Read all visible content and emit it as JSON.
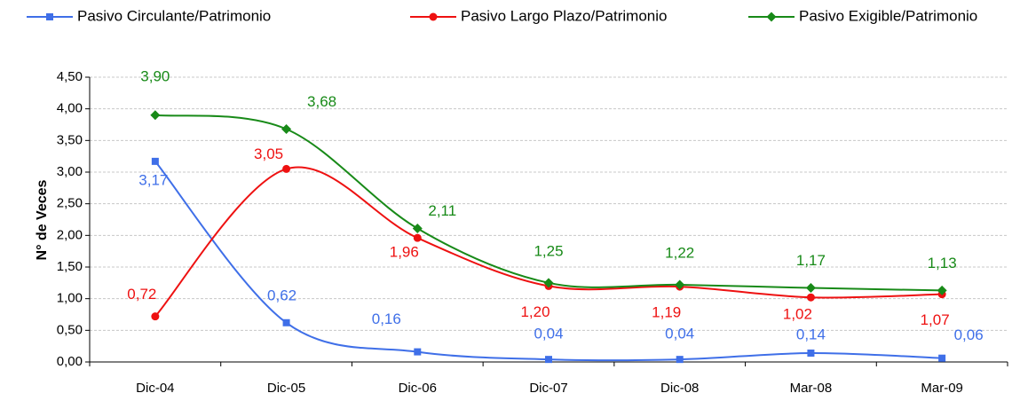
{
  "chart_data": {
    "type": "line",
    "y_label": "N° de Veces",
    "categories": [
      "Dic-04",
      "Dic-05",
      "Dic-06",
      "Dic-07",
      "Dic-08",
      "Mar-08",
      "Mar-09"
    ],
    "series": [
      {
        "name": "Pasivo Circulante/Patrimonio",
        "color": "#3f6fe8",
        "marker": "square",
        "values": [
          3.17,
          0.62,
          0.16,
          0.04,
          0.04,
          0.14,
          0.06
        ],
        "value_labels": [
          "3,17",
          "0,62",
          "0,16",
          "0,04",
          "0,04",
          "0,14",
          "0,06"
        ]
      },
      {
        "name": "Pasivo Largo Plazo/Patrimonio",
        "color": "#ee1111",
        "marker": "circle",
        "values": [
          0.72,
          3.05,
          1.96,
          1.2,
          1.19,
          1.02,
          1.07
        ],
        "value_labels": [
          "0,72",
          "3,05",
          "1,96",
          "1,20",
          "1,19",
          "1,02",
          "1,07"
        ]
      },
      {
        "name": "Pasivo Exigible/Patrimonio",
        "color": "#188a18",
        "marker": "diamond",
        "values": [
          3.9,
          3.68,
          2.11,
          1.25,
          1.22,
          1.17,
          1.13
        ],
        "value_labels": [
          "3,90",
          "3,68",
          "2,11",
          "1,25",
          "1,22",
          "1,17",
          "1,13"
        ]
      }
    ],
    "ylim": [
      0,
      4.5
    ],
    "yticks": [
      {
        "value": 0,
        "label": "0,00"
      },
      {
        "value": 0.5,
        "label": "0,50"
      },
      {
        "value": 1,
        "label": "1,00"
      },
      {
        "value": 1.5,
        "label": "1,50"
      },
      {
        "value": 2,
        "label": "2,00"
      },
      {
        "value": 2.5,
        "label": "2,50"
      },
      {
        "value": 3,
        "label": "3,00"
      },
      {
        "value": 3.5,
        "label": "3,50"
      },
      {
        "value": 4,
        "label": "4,00"
      },
      {
        "value": 4.5,
        "label": "4,50"
      }
    ],
    "grid": true,
    "smooth": true,
    "legend": "top"
  }
}
